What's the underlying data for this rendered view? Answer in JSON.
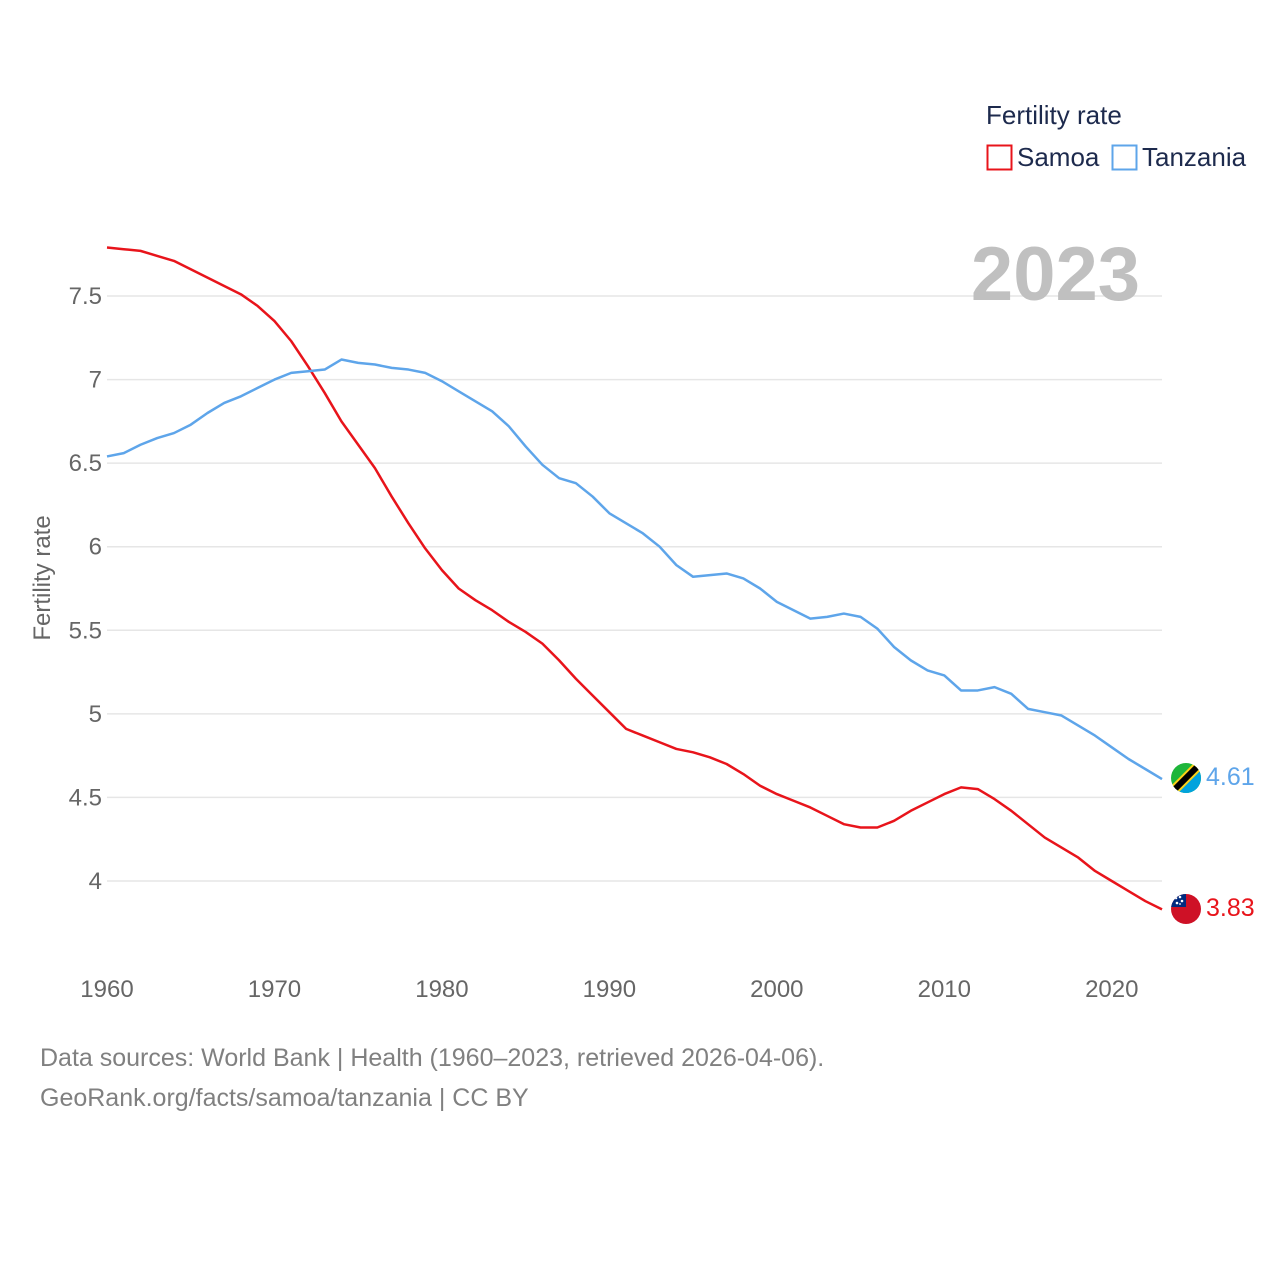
{
  "chart_data": {
    "type": "line",
    "title": "Fertility rate",
    "ylabel": "Fertility rate",
    "xlabel": "",
    "current_year_label": "2023",
    "xlim": [
      1960,
      2023
    ],
    "ylim": [
      3.6,
      7.85
    ],
    "x_ticks": [
      1960,
      1970,
      1980,
      1990,
      2000,
      2010,
      2020
    ],
    "y_ticks": [
      {
        "value": 4,
        "label": "4"
      },
      {
        "value": 4.5,
        "label": "4.5"
      },
      {
        "value": 5,
        "label": "5"
      },
      {
        "value": 5.5,
        "label": "5.5"
      },
      {
        "value": 6,
        "label": "6"
      },
      {
        "value": 6.5,
        "label": "6.5"
      },
      {
        "value": 7,
        "label": "7"
      },
      {
        "value": 7.5,
        "label": "7.5"
      }
    ],
    "gridlines": true,
    "legend_position": "top-right",
    "x": [
      1960,
      1961,
      1962,
      1963,
      1964,
      1965,
      1966,
      1967,
      1968,
      1969,
      1970,
      1971,
      1972,
      1973,
      1974,
      1975,
      1976,
      1977,
      1978,
      1979,
      1980,
      1981,
      1982,
      1983,
      1984,
      1985,
      1986,
      1987,
      1988,
      1989,
      1990,
      1991,
      1992,
      1993,
      1994,
      1995,
      1996,
      1997,
      1998,
      1999,
      2000,
      2001,
      2002,
      2003,
      2004,
      2005,
      2006,
      2007,
      2008,
      2009,
      2010,
      2011,
      2012,
      2013,
      2014,
      2015,
      2016,
      2017,
      2018,
      2019,
      2020,
      2021,
      2022,
      2023
    ],
    "series": [
      {
        "name": "Samoa",
        "color": "#e8141b",
        "end_label": "3.83",
        "flag": "samoa-flag",
        "values": [
          7.79,
          7.78,
          7.77,
          7.74,
          7.71,
          7.66,
          7.61,
          7.56,
          7.51,
          7.44,
          7.35,
          7.23,
          7.08,
          6.92,
          6.75,
          6.61,
          6.47,
          6.3,
          6.14,
          5.99,
          5.86,
          5.75,
          5.68,
          5.62,
          5.55,
          5.49,
          5.42,
          5.32,
          5.21,
          5.11,
          5.01,
          4.91,
          4.87,
          4.83,
          4.79,
          4.77,
          4.74,
          4.7,
          4.64,
          4.57,
          4.52,
          4.48,
          4.44,
          4.39,
          4.34,
          4.32,
          4.32,
          4.36,
          4.42,
          4.47,
          4.52,
          4.56,
          4.55,
          4.49,
          4.42,
          4.34,
          4.26,
          4.2,
          4.14,
          4.06,
          4.0,
          3.94,
          3.88,
          3.83
        ]
      },
      {
        "name": "Tanzania",
        "color": "#5ea5ea",
        "end_label": "4.61",
        "flag": "tanzania-flag",
        "values": [
          6.54,
          6.56,
          6.61,
          6.65,
          6.68,
          6.73,
          6.8,
          6.86,
          6.9,
          6.95,
          7.0,
          7.04,
          7.05,
          7.06,
          7.12,
          7.1,
          7.09,
          7.07,
          7.06,
          7.04,
          6.99,
          6.93,
          6.87,
          6.81,
          6.72,
          6.6,
          6.49,
          6.41,
          6.38,
          6.3,
          6.2,
          6.14,
          6.08,
          6.0,
          5.89,
          5.82,
          5.83,
          5.84,
          5.81,
          5.75,
          5.67,
          5.62,
          5.57,
          5.58,
          5.6,
          5.58,
          5.51,
          5.4,
          5.32,
          5.26,
          5.23,
          5.14,
          5.14,
          5.16,
          5.12,
          5.03,
          5.01,
          4.99,
          4.93,
          4.87,
          4.8,
          4.73,
          4.67,
          4.61
        ]
      }
    ]
  },
  "footer": {
    "line1": "Data sources: World Bank | Health (1960–2023, retrieved 2026-04-06).",
    "line2": "GeoRank.org/facts/samoa/tanzania | CC BY"
  }
}
